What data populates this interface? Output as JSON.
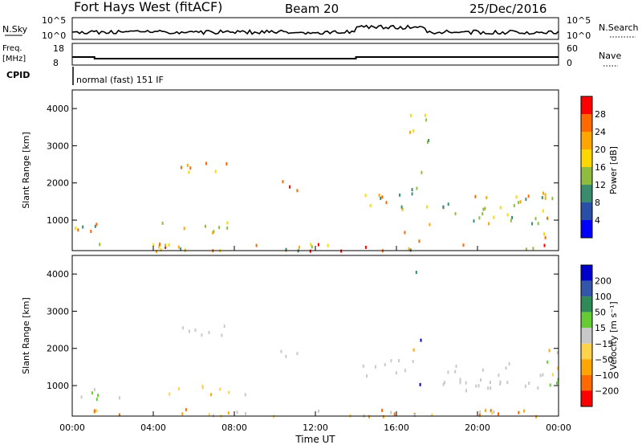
{
  "header": {
    "station": "Fort Hays West (fitACF)",
    "beam": "Beam 20",
    "date": "25/Dec/2016"
  },
  "ops_panels": {
    "nsky_label": "N.Sky",
    "nsearch_label": "N.Search",
    "noise_ticks": [
      "10^5",
      "10^0"
    ],
    "freq_label": "Freq.",
    "freq_unit": "[MHz]",
    "freq_ticks": [
      "18",
      "8"
    ],
    "nave_label": "Nave",
    "nave_ticks": [
      "60",
      "0"
    ],
    "cpid_label": "CPID",
    "cpid_value": "normal (fast) 151 IF"
  },
  "axes": {
    "ylabel": "Slant Range [km]",
    "xlabel": "Time UT",
    "yticks": [
      "1000",
      "2000",
      "3000",
      "4000"
    ],
    "xticks": [
      "00:00",
      "04:00",
      "08:00",
      "12:00",
      "16:00",
      "20:00",
      "00:00"
    ]
  },
  "colorbars": {
    "power": {
      "label": "Power [dB]",
      "ticks": [
        "28",
        "24",
        "20",
        "16",
        "12",
        "8",
        "4"
      ],
      "colors": [
        "#ff0000",
        "#ff6a00",
        "#ffa500",
        "#ffd700",
        "#8fbc3f",
        "#3a8c6e",
        "#2a4fa8",
        "#0000ff"
      ]
    },
    "velocity": {
      "label": "Velocity [m s⁻¹]",
      "ticks": [
        "200",
        "100",
        "50",
        "15",
        "−15",
        "−50",
        "−100",
        "−200"
      ],
      "colors": [
        "#0000cc",
        "#3355aa",
        "#2e8b57",
        "#66cc33",
        "#c8c8c8",
        "#ffd24d",
        "#ffa500",
        "#ff6a00",
        "#ff0000"
      ]
    }
  },
  "chart_data": [
    {
      "type": "heatmap",
      "title": "Power",
      "x_unit": "hours UT",
      "y_unit": "km",
      "xlim": [
        0,
        24
      ],
      "ylim": [
        180,
        4500
      ],
      "scatter_blobs": [
        {
          "t0": 0.0,
          "t1": 2.4,
          "r0": 600,
          "r1": 950,
          "level": [
            2,
            6
          ]
        },
        {
          "t0": 4.3,
          "t1": 5.6,
          "r0": 800,
          "r1": 1000,
          "level": [
            2,
            6
          ]
        },
        {
          "t0": 6.0,
          "t1": 7.1,
          "r0": 700,
          "r1": 1050,
          "level": [
            2,
            6
          ]
        },
        {
          "t0": 7.2,
          "t1": 8.6,
          "r0": 750,
          "r1": 1050,
          "level": [
            2,
            5
          ]
        },
        {
          "t0": 0.5,
          "t1": 23.5,
          "r0": 180,
          "r1": 400,
          "level": [
            2,
            7
          ]
        },
        {
          "t0": 14.3,
          "t1": 17.0,
          "r0": 1300,
          "r1": 1800,
          "level": [
            2,
            6
          ]
        },
        {
          "t0": 18.2,
          "t1": 23.2,
          "r0": 900,
          "r1": 1700,
          "level": [
            2,
            6
          ]
        },
        {
          "t0": 5.3,
          "t1": 7.6,
          "r0": 2200,
          "r1": 2650,
          "level": [
            4,
            7
          ]
        },
        {
          "t0": 10.2,
          "t1": 11.5,
          "r0": 1800,
          "r1": 2100,
          "level": [
            5,
            7
          ]
        },
        {
          "t0": 16.2,
          "t1": 17.6,
          "r0": 200,
          "r1": 4300,
          "level": [
            2,
            6
          ]
        },
        {
          "t0": 23.2,
          "t1": 24.0,
          "r0": 500,
          "r1": 2000,
          "level": [
            2,
            7
          ]
        }
      ]
    },
    {
      "type": "heatmap",
      "title": "Velocity",
      "x_unit": "hours UT",
      "y_unit": "km",
      "xlim": [
        0,
        24
      ],
      "ylim": [
        180,
        4500
      ],
      "scatter_blobs": [
        {
          "t0": 0.0,
          "t1": 2.4,
          "r0": 600,
          "r1": 950,
          "level": [
            3,
            4
          ]
        },
        {
          "t0": 4.3,
          "t1": 5.6,
          "r0": 800,
          "r1": 1000,
          "level": [
            5,
            6
          ]
        },
        {
          "t0": 6.0,
          "t1": 7.1,
          "r0": 700,
          "r1": 1050,
          "level": [
            5,
            6
          ]
        },
        {
          "t0": 7.2,
          "t1": 8.6,
          "r0": 750,
          "r1": 1050,
          "level": [
            4,
            5
          ]
        },
        {
          "t0": 0.5,
          "t1": 23.5,
          "r0": 180,
          "r1": 400,
          "level": [
            4,
            7
          ]
        },
        {
          "t0": 14.3,
          "t1": 17.0,
          "r0": 1300,
          "r1": 1800,
          "level": [
            4,
            4
          ]
        },
        {
          "t0": 18.2,
          "t1": 23.2,
          "r0": 900,
          "r1": 1700,
          "level": [
            4,
            4
          ]
        },
        {
          "t0": 5.3,
          "t1": 7.6,
          "r0": 2200,
          "r1": 2650,
          "level": [
            4,
            4
          ]
        },
        {
          "t0": 10.2,
          "t1": 11.5,
          "r0": 1800,
          "r1": 2100,
          "level": [
            4,
            4
          ]
        },
        {
          "t0": 16.2,
          "t1": 17.6,
          "r0": 200,
          "r1": 4300,
          "level": [
            0,
            8
          ]
        },
        {
          "t0": 23.2,
          "t1": 24.0,
          "r0": 500,
          "r1": 2000,
          "level": [
            3,
            6
          ]
        }
      ]
    }
  ]
}
